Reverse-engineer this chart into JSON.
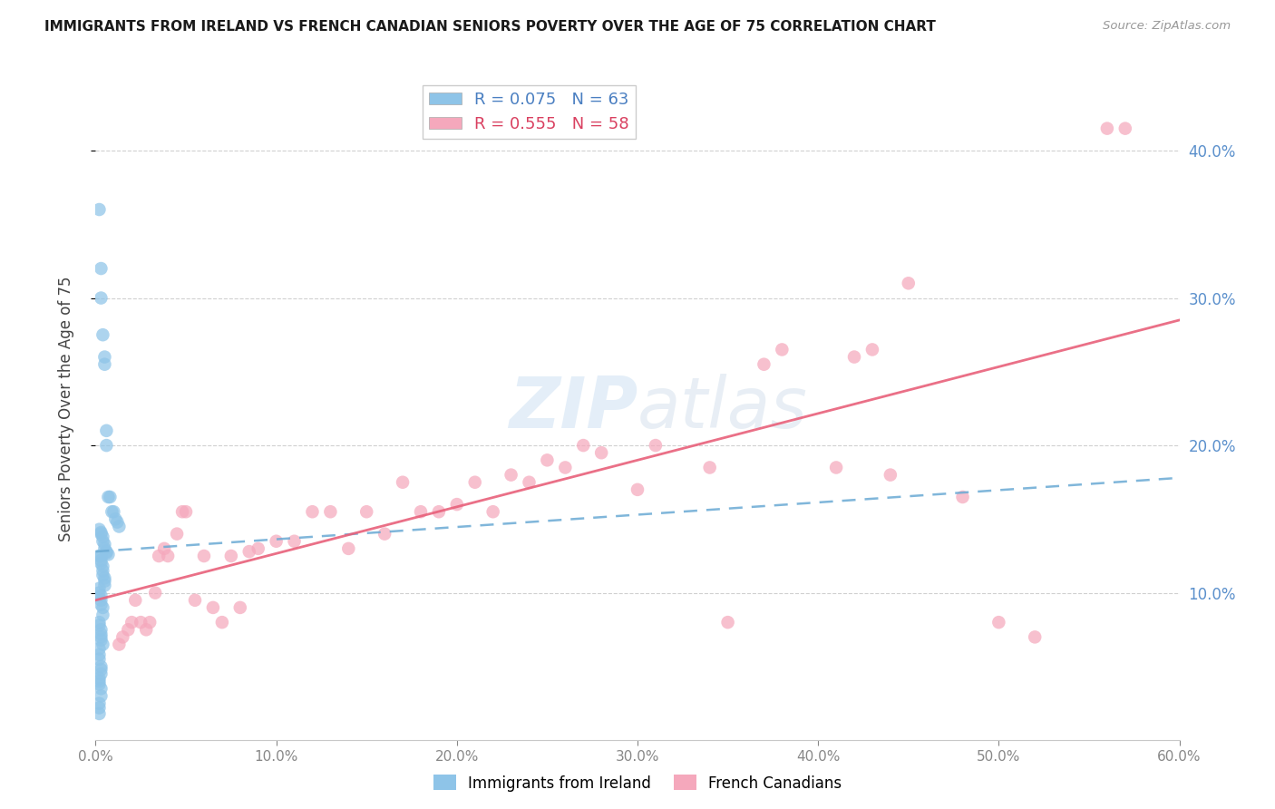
{
  "title": "IMMIGRANTS FROM IRELAND VS FRENCH CANADIAN SENIORS POVERTY OVER THE AGE OF 75 CORRELATION CHART",
  "source": "Source: ZipAtlas.com",
  "ylabel": "Seniors Poverty Over the Age of 75",
  "legend_labels": [
    "Immigrants from Ireland",
    "French Canadians"
  ],
  "legend_r": [
    "R = 0.075",
    "R = 0.555"
  ],
  "legend_n": [
    "N = 63",
    "N = 58"
  ],
  "blue_color": "#8ec4e8",
  "pink_color": "#f5a8bc",
  "blue_line_color": "#6aaad4",
  "pink_line_color": "#e8607a",
  "watermark": "ZIPatlas",
  "xlim": [
    0,
    0.6
  ],
  "ylim": [
    0,
    0.45
  ],
  "right_yticks": [
    0.1,
    0.2,
    0.3,
    0.4
  ],
  "right_yticklabels": [
    "10.0%",
    "20.0%",
    "30.0%",
    "40.0%"
  ],
  "blue_scatter_x": [
    0.002,
    0.003,
    0.003,
    0.004,
    0.005,
    0.005,
    0.006,
    0.006,
    0.007,
    0.008,
    0.009,
    0.01,
    0.011,
    0.012,
    0.013,
    0.002,
    0.003,
    0.003,
    0.004,
    0.004,
    0.005,
    0.005,
    0.006,
    0.006,
    0.007,
    0.002,
    0.003,
    0.003,
    0.003,
    0.004,
    0.004,
    0.004,
    0.005,
    0.005,
    0.005,
    0.002,
    0.002,
    0.003,
    0.003,
    0.003,
    0.004,
    0.004,
    0.002,
    0.002,
    0.003,
    0.003,
    0.003,
    0.003,
    0.004,
    0.002,
    0.002,
    0.002,
    0.003,
    0.003,
    0.003,
    0.002,
    0.002,
    0.002,
    0.003,
    0.003,
    0.002,
    0.002,
    0.002
  ],
  "blue_scatter_y": [
    0.36,
    0.32,
    0.3,
    0.275,
    0.26,
    0.255,
    0.21,
    0.2,
    0.165,
    0.165,
    0.155,
    0.155,
    0.15,
    0.148,
    0.145,
    0.143,
    0.141,
    0.14,
    0.138,
    0.135,
    0.133,
    0.13,
    0.128,
    0.127,
    0.126,
    0.125,
    0.125,
    0.122,
    0.12,
    0.118,
    0.115,
    0.112,
    0.11,
    0.108,
    0.105,
    0.103,
    0.1,
    0.098,
    0.095,
    0.092,
    0.09,
    0.085,
    0.08,
    0.078,
    0.075,
    0.072,
    0.07,
    0.068,
    0.065,
    0.062,
    0.058,
    0.055,
    0.05,
    0.048,
    0.045,
    0.042,
    0.04,
    0.038,
    0.035,
    0.03,
    0.025,
    0.022,
    0.018
  ],
  "pink_scatter_x": [
    0.56,
    0.57,
    0.45,
    0.43,
    0.42,
    0.41,
    0.38,
    0.37,
    0.35,
    0.34,
    0.31,
    0.3,
    0.28,
    0.27,
    0.26,
    0.25,
    0.24,
    0.23,
    0.22,
    0.21,
    0.2,
    0.19,
    0.18,
    0.17,
    0.16,
    0.15,
    0.14,
    0.13,
    0.12,
    0.11,
    0.1,
    0.09,
    0.085,
    0.08,
    0.075,
    0.07,
    0.065,
    0.06,
    0.055,
    0.05,
    0.048,
    0.045,
    0.04,
    0.038,
    0.035,
    0.033,
    0.03,
    0.028,
    0.025,
    0.022,
    0.02,
    0.018,
    0.015,
    0.013,
    0.44,
    0.48,
    0.5,
    0.52
  ],
  "pink_scatter_y": [
    0.415,
    0.415,
    0.31,
    0.265,
    0.26,
    0.185,
    0.265,
    0.255,
    0.08,
    0.185,
    0.2,
    0.17,
    0.195,
    0.2,
    0.185,
    0.19,
    0.175,
    0.18,
    0.155,
    0.175,
    0.16,
    0.155,
    0.155,
    0.175,
    0.14,
    0.155,
    0.13,
    0.155,
    0.155,
    0.135,
    0.135,
    0.13,
    0.128,
    0.09,
    0.125,
    0.08,
    0.09,
    0.125,
    0.095,
    0.155,
    0.155,
    0.14,
    0.125,
    0.13,
    0.125,
    0.1,
    0.08,
    0.075,
    0.08,
    0.095,
    0.08,
    0.075,
    0.07,
    0.065,
    0.18,
    0.165,
    0.08,
    0.07
  ],
  "blue_trend_x": [
    0.0,
    0.6
  ],
  "blue_trend_y": [
    0.128,
    0.178
  ],
  "pink_trend_x": [
    0.0,
    0.6
  ],
  "pink_trend_y": [
    0.095,
    0.285
  ]
}
